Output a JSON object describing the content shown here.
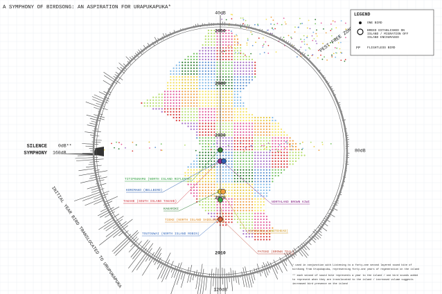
{
  "title": "A SYMPHONY OF BIRDSONG: AN ASPIRATION FOR URAPUKAPUKA*",
  "scale_labels": {
    "top": "40dB",
    "right": "80dB",
    "bottom": "120dB",
    "left": "0dB**",
    "left_lower": "160dB"
  },
  "years": [
    "2050",
    "2040",
    "2030",
    "2020",
    "2010"
  ],
  "zone_label": "PEST FREE ZONE",
  "silence_label": [
    "SILENCE",
    "SYMPHONY"
  ],
  "initial_label": "INITIAL YEAR BIRD TRANSLOCATED TO URUPUKAPUKA",
  "birds": [
    {
      "label": "TITIPOUNAMU (NORTH ISLAND RIFLEMAN)",
      "color": "#2e9e3e"
    },
    {
      "label": "KORIMAKO (BELLBIRD)",
      "color": "#2a5fb0"
    },
    {
      "label": "TAKAHE (SOUTH ISLAND TAKAHE)",
      "color": "#d0303a"
    },
    {
      "label": "NORTHLAND BROWN KIWI",
      "color": "#8a2a8a"
    },
    {
      "label": "KAKARIKI",
      "color": "#2e7d32"
    },
    {
      "label": "TIEKE (NORTH ISLAND SADDLEBACK)",
      "color": "#e08a1e"
    },
    {
      "label": "TOUTOUWAI (NORTH ISLAND ROBIN)",
      "color": "#3a6ec0"
    },
    {
      "label": "POPOKATEA (WHITEHEAD)",
      "color": "#d69a20"
    },
    {
      "label": "PATEKE (BROWN TEAL)",
      "color": "#c04a3a"
    }
  ],
  "legend": {
    "title": "LEGEND",
    "one_bird": "ONE BIRD",
    "breed": [
      "BREED ESTABLISHED ON",
      "ISLAND / MIGRATION OFF",
      "ISLAND ENCOURAGED"
    ],
    "fp": "FP",
    "flightless": "FLIGHTLESS BIRD"
  },
  "footnotes": [
    "* used in conjunction with Listening to a forty-one second layered sound bite of",
    "birdsong from Urupukapuka, representing forty-one years of regeneration on the island",
    "** each second of sound bite represents a year to the island / one bird sounds added",
    "to represent when they are translocated to the island / increased volume suggests",
    "increased bird presence on the island"
  ]
}
